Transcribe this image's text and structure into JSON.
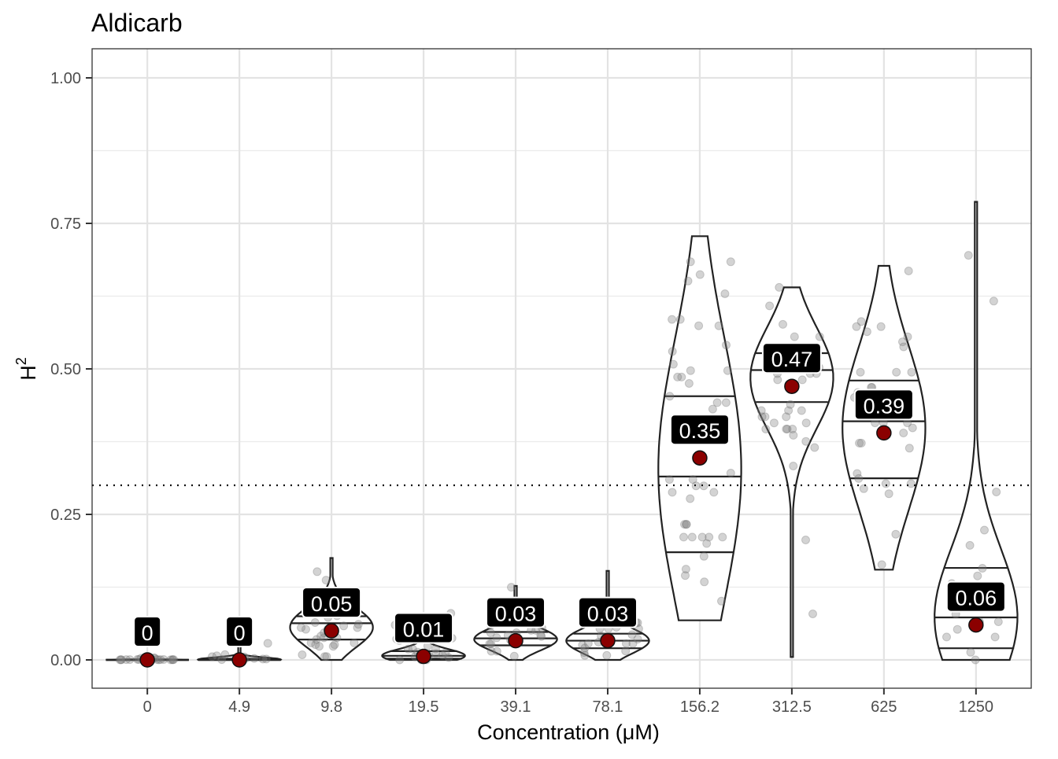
{
  "chart_data": {
    "type": "violin",
    "title": "Aldicarb",
    "xlabel": "Concentration (μM)",
    "ylabel_base": "H",
    "ylabel_sup": "2",
    "ylim": [
      0,
      1.0
    ],
    "yticks": [
      0,
      0.25,
      0.5,
      0.75,
      1.0
    ],
    "ytick_labels": [
      "0.00",
      "0.25",
      "0.50",
      "0.75",
      "1.00"
    ],
    "threshold": 0.3,
    "grid": true,
    "legend": "none",
    "colors": {
      "point_mean": "#8B0000",
      "jitter": "#808080",
      "label_bg": "#000000",
      "label_text": "#ffffff",
      "outline": "#222222"
    },
    "categories": [
      "0",
      "4.9",
      "9.8",
      "19.5",
      "39.1",
      "78.1",
      "156.2",
      "312.5",
      "625",
      "1250"
    ],
    "labels": [
      "0",
      "0",
      "0.05",
      "0.01",
      "0.03",
      "0.03",
      "0.35",
      "0.47",
      "0.39",
      "0.06"
    ],
    "means": [
      0.0,
      0.0,
      0.05,
      0.006,
      0.033,
      0.033,
      0.347,
      0.47,
      0.39,
      0.06
    ],
    "min": [
      0.0,
      0.0,
      0.0,
      0.0,
      0.0,
      0.0,
      0.068,
      0.005,
      0.155,
      0.0
    ],
    "max": [
      0.005,
      0.03,
      0.175,
      0.08,
      0.127,
      0.153,
      0.728,
      0.64,
      0.677,
      0.787
    ],
    "quartiles": [
      [
        0.0,
        0.0,
        0.0
      ],
      [
        0.0,
        0.0,
        0.002
      ],
      [
        0.035,
        0.063,
        0.075
      ],
      [
        0.002,
        0.007,
        0.015
      ],
      [
        0.025,
        0.037,
        0.048
      ],
      [
        0.02,
        0.033,
        0.045
      ],
      [
        0.185,
        0.315,
        0.453
      ],
      [
        0.443,
        0.498,
        0.527
      ],
      [
        0.312,
        0.41,
        0.48
      ],
      [
        0.02,
        0.073,
        0.158
      ]
    ]
  }
}
